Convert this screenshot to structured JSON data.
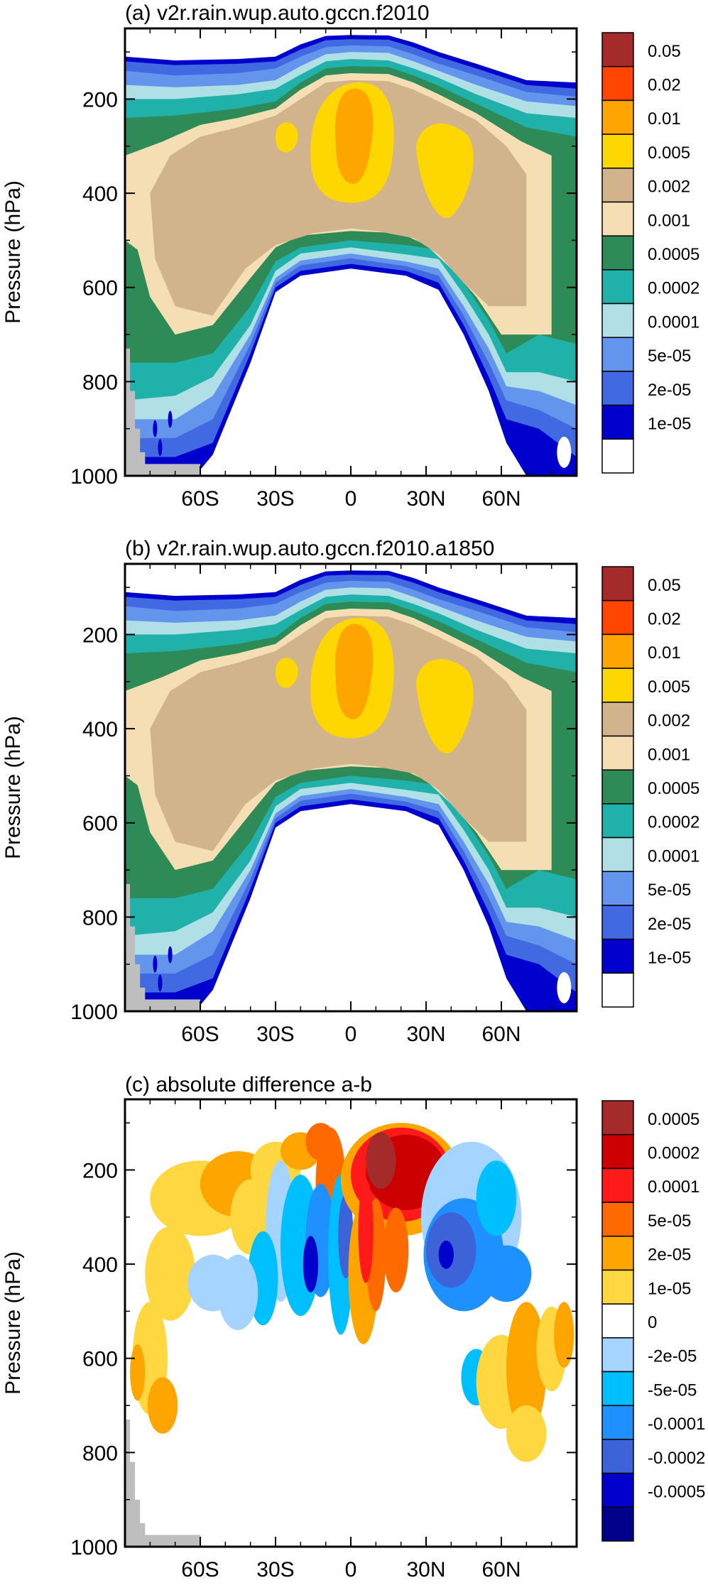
{
  "panels": [
    {
      "title": "(a) v2r.rain.wup.auto.gccn.f2010",
      "ylabel": "Pressure (hPa)",
      "kind": "positive",
      "colorbar_labels": [
        "0.05",
        "0.02",
        "0.01",
        "0.005",
        "0.002",
        "0.001",
        "0.0005",
        "0.0002",
        "0.0001",
        "5e-05",
        "2e-05",
        "1e-05"
      ],
      "colors": [
        "#A52A2A",
        "#FF4500",
        "#FFA500",
        "#FFD700",
        "#D2B48C",
        "#F5DEB3",
        "#2E8B57",
        "#20B2AA",
        "#B0E0E6",
        "#6495ED",
        "#4169E1",
        "#0000CD",
        "#FFFFFF"
      ]
    },
    {
      "title": "(b) v2r.rain.wup.auto.gccn.f2010.a1850",
      "ylabel": "Pressure (hPa)",
      "kind": "positive",
      "colorbar_labels": [
        "0.05",
        "0.02",
        "0.01",
        "0.005",
        "0.002",
        "0.001",
        "0.0005",
        "0.0002",
        "0.0001",
        "5e-05",
        "2e-05",
        "1e-05"
      ],
      "colors": [
        "#A52A2A",
        "#FF4500",
        "#FFA500",
        "#FFD700",
        "#D2B48C",
        "#F5DEB3",
        "#2E8B57",
        "#20B2AA",
        "#B0E0E6",
        "#6495ED",
        "#4169E1",
        "#0000CD",
        "#FFFFFF"
      ]
    },
    {
      "title": "(c) absolute difference a-b",
      "ylabel": "Pressure (hPa)",
      "kind": "difference",
      "colorbar_labels": [
        "0.0005",
        "0.0002",
        "0.0001",
        "5e-05",
        "2e-05",
        "1e-05",
        "0",
        "-2e-05",
        "-5e-05",
        "-0.0001",
        "-0.0002",
        "-0.0005"
      ],
      "colors": [
        "#A52A2A",
        "#CC0000",
        "#FF1A1A",
        "#FF6A00",
        "#FFA500",
        "#FFD740",
        "#FFFFFF",
        "#A4D4FF",
        "#00BFFF",
        "#1E90FF",
        "#3C64D8",
        "#0000CD",
        "#00008B"
      ]
    }
  ],
  "chart_data": [
    {
      "type": "heatmap",
      "title": "(a) v2r.rain.wup.auto.gccn.f2010",
      "ylabel": "Pressure (hPa)",
      "xticks": [
        "60S",
        "30S",
        "0",
        "30N",
        "60N"
      ],
      "yticks": [
        200,
        400,
        600,
        800,
        1000
      ],
      "ylim": [
        1000,
        50
      ],
      "xlim": [
        -90,
        90
      ],
      "contour_levels": [
        1e-05,
        2e-05,
        5e-05,
        0.0001,
        0.0002,
        0.0005,
        0.001,
        0.002,
        0.005,
        0.01,
        0.02,
        0.05
      ]
    },
    {
      "type": "heatmap",
      "title": "(b) v2r.rain.wup.auto.gccn.f2010.a1850",
      "ylabel": "Pressure (hPa)",
      "xticks": [
        "60S",
        "30S",
        "0",
        "30N",
        "60N"
      ],
      "yticks": [
        200,
        400,
        600,
        800,
        1000
      ],
      "ylim": [
        1000,
        50
      ],
      "xlim": [
        -90,
        90
      ],
      "contour_levels": [
        1e-05,
        2e-05,
        5e-05,
        0.0001,
        0.0002,
        0.0005,
        0.001,
        0.002,
        0.005,
        0.01,
        0.02,
        0.05
      ]
    },
    {
      "type": "heatmap",
      "title": "(c) absolute difference a-b",
      "ylabel": "Pressure (hPa)",
      "xticks": [
        "60S",
        "30S",
        "0",
        "30N",
        "60N"
      ],
      "yticks": [
        200,
        400,
        600,
        800,
        1000
      ],
      "ylim": [
        1000,
        50
      ],
      "xlim": [
        -90,
        90
      ],
      "contour_levels": [
        -0.0005,
        -0.0002,
        -0.0001,
        -5e-05,
        -2e-05,
        0,
        1e-05,
        2e-05,
        5e-05,
        0.0001,
        0.0002,
        0.0005
      ]
    }
  ]
}
